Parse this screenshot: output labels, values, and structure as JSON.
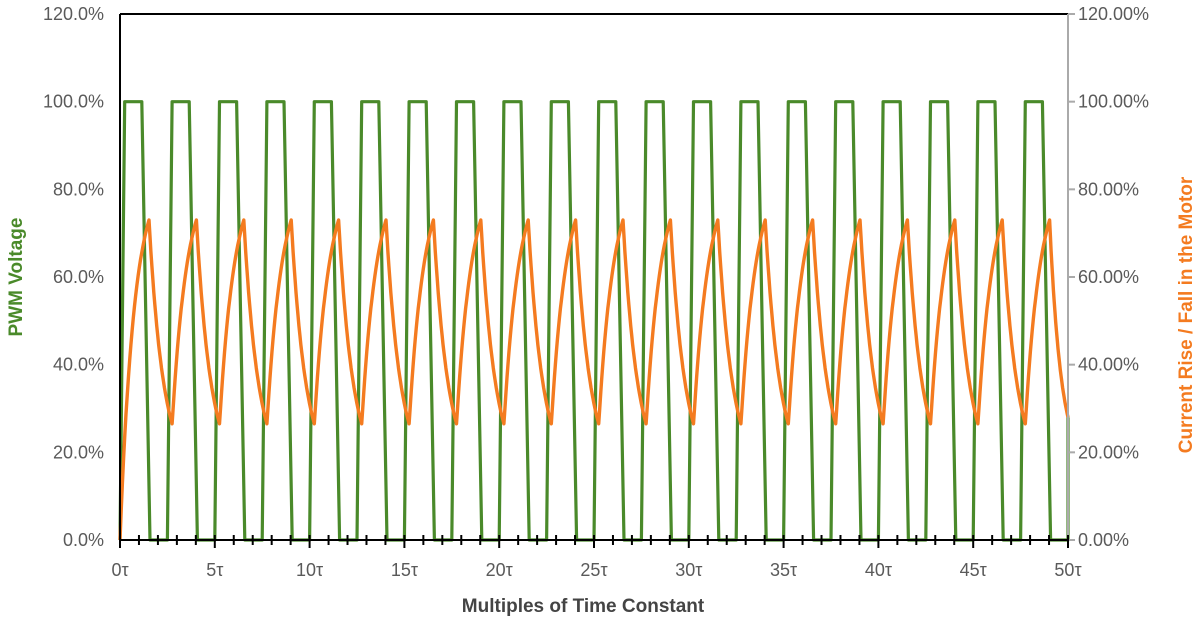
{
  "chart_data": {
    "type": "line",
    "xlabel": "Multiples of Time Constant",
    "ylabel_left": "PWM Voltage",
    "ylabel_right": "Current Rise / Fall in the Motor",
    "xlim": [
      0,
      50
    ],
    "ylim": [
      0,
      120
    ],
    "grid": false,
    "x_ticks": [
      "0τ",
      "5τ",
      "10τ",
      "15τ",
      "20τ",
      "25τ",
      "30τ",
      "35τ",
      "40τ",
      "45τ",
      "50τ"
    ],
    "y_ticks_left": [
      "0.0%",
      "20.0%",
      "40.0%",
      "60.0%",
      "80.0%",
      "100.0%",
      "120.0%"
    ],
    "y_ticks_right": [
      "0.00%",
      "20.00%",
      "40.00%",
      "60.00%",
      "80.00%",
      "100.00%",
      "120.00%"
    ],
    "colors": {
      "pwm": "#4a8a2a",
      "current": "#f47b20",
      "axis": "#000000",
      "right_axis": "#aaaaaa"
    },
    "series": [
      {
        "key": "pwm",
        "axis": "left",
        "points": [
          [
            0,
            0
          ],
          [
            0.25,
            100
          ],
          [
            1.15,
            100
          ],
          [
            1.58,
            0
          ],
          [
            2.5,
            0
          ],
          [
            2.75,
            100
          ],
          [
            3.65,
            100
          ],
          [
            4.08,
            0
          ],
          [
            5,
            0
          ],
          [
            5.25,
            100
          ],
          [
            6.15,
            100
          ],
          [
            6.58,
            0
          ],
          [
            7.5,
            0
          ],
          [
            7.75,
            100
          ],
          [
            8.65,
            100
          ],
          [
            9.08,
            0
          ],
          [
            10,
            0
          ],
          [
            10.25,
            100
          ],
          [
            11.15,
            100
          ],
          [
            11.58,
            0
          ],
          [
            12.5,
            0
          ],
          [
            12.75,
            100
          ],
          [
            13.65,
            100
          ],
          [
            14.08,
            0
          ],
          [
            15,
            0
          ],
          [
            15.25,
            100
          ],
          [
            16.15,
            100
          ],
          [
            16.58,
            0
          ],
          [
            17.5,
            0
          ],
          [
            17.75,
            100
          ],
          [
            18.65,
            100
          ],
          [
            19.08,
            0
          ],
          [
            20,
            0
          ],
          [
            20.25,
            100
          ],
          [
            21.15,
            100
          ],
          [
            21.58,
            0
          ],
          [
            22.5,
            0
          ],
          [
            22.75,
            100
          ],
          [
            23.65,
            100
          ],
          [
            24.08,
            0
          ],
          [
            25,
            0
          ],
          [
            25.25,
            100
          ],
          [
            26.15,
            100
          ],
          [
            26.58,
            0
          ],
          [
            27.5,
            0
          ],
          [
            27.75,
            100
          ],
          [
            28.65,
            100
          ],
          [
            29.08,
            0
          ],
          [
            30,
            0
          ],
          [
            30.25,
            100
          ],
          [
            31.15,
            100
          ],
          [
            31.58,
            0
          ],
          [
            32.5,
            0
          ],
          [
            32.75,
            100
          ],
          [
            33.65,
            100
          ],
          [
            34.08,
            0
          ],
          [
            35,
            0
          ],
          [
            35.25,
            100
          ],
          [
            36.15,
            100
          ],
          [
            36.58,
            0
          ],
          [
            37.5,
            0
          ],
          [
            37.75,
            100
          ],
          [
            38.65,
            100
          ],
          [
            39.08,
            0
          ],
          [
            40,
            0
          ],
          [
            40.25,
            100
          ],
          [
            41.15,
            100
          ],
          [
            41.58,
            0
          ],
          [
            42.5,
            0
          ],
          [
            42.75,
            100
          ],
          [
            43.65,
            100
          ],
          [
            44.08,
            0
          ],
          [
            45,
            0
          ],
          [
            45.25,
            100
          ],
          [
            46.15,
            100
          ],
          [
            46.58,
            0
          ],
          [
            47.5,
            0
          ],
          [
            47.75,
            100
          ],
          [
            48.65,
            100
          ],
          [
            49.08,
            0
          ],
          [
            50,
            0
          ],
          [
            50,
            28
          ]
        ]
      },
      {
        "key": "current",
        "axis": "right",
        "points": [
          [
            0,
            0
          ],
          [
            1.53,
            73
          ],
          [
            2.75,
            26.5
          ],
          [
            4.03,
            73
          ],
          [
            5.25,
            26.5
          ],
          [
            6.53,
            73
          ],
          [
            7.75,
            26.5
          ],
          [
            9.03,
            73
          ],
          [
            10.25,
            26.5
          ],
          [
            11.53,
            73
          ],
          [
            12.75,
            26.5
          ],
          [
            14.03,
            73
          ],
          [
            15.25,
            26.5
          ],
          [
            16.53,
            73
          ],
          [
            17.75,
            26.5
          ],
          [
            19.03,
            73
          ],
          [
            20.25,
            26.5
          ],
          [
            21.53,
            73
          ],
          [
            22.75,
            26.5
          ],
          [
            24.03,
            73
          ],
          [
            25.25,
            26.5
          ],
          [
            26.53,
            73
          ],
          [
            27.75,
            26.5
          ],
          [
            29.03,
            73
          ],
          [
            30.25,
            26.5
          ],
          [
            31.53,
            73
          ],
          [
            32.75,
            26.5
          ],
          [
            34.03,
            73
          ],
          [
            35.25,
            26.5
          ],
          [
            36.53,
            73
          ],
          [
            37.75,
            26.5
          ],
          [
            39.03,
            73
          ],
          [
            40.25,
            26.5
          ],
          [
            41.53,
            73
          ],
          [
            42.75,
            26.5
          ],
          [
            44.03,
            73
          ],
          [
            45.25,
            26.5
          ],
          [
            46.53,
            73
          ],
          [
            47.75,
            26.5
          ],
          [
            49.03,
            73
          ],
          [
            50,
            28
          ]
        ]
      }
    ]
  }
}
